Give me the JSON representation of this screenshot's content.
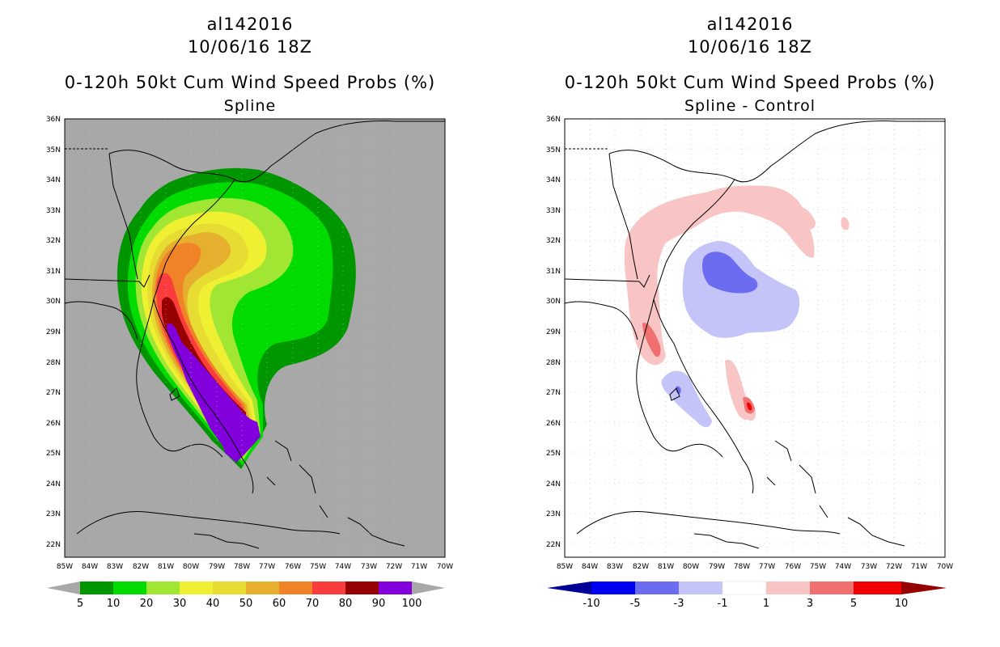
{
  "left_panel": {
    "storm_id": "al142016",
    "date": "10/06/16 18Z",
    "title": "0-120h 50kt Cum Wind Speed Probs (%)",
    "subtitle": "Spline",
    "background_color": "#a8a8a8",
    "colorbar": {
      "labels": [
        "5",
        "10",
        "20",
        "30",
        "40",
        "50",
        "60",
        "70",
        "80",
        "90",
        "100"
      ],
      "colors": [
        "#009600",
        "#00dc00",
        "#a0e632",
        "#f0f032",
        "#e6dc32",
        "#e6af2d",
        "#f08228",
        "#fa3c3c",
        "#960000",
        "#8200dc"
      ]
    }
  },
  "right_panel": {
    "storm_id": "al142016",
    "date": "10/06/16 18Z",
    "title": "0-120h 50kt Cum Wind Speed Probs (%)",
    "subtitle": "Spline - Control",
    "background_color": "#ffffff",
    "colorbar": {
      "labels": [
        "-10",
        "-5",
        "-3",
        "-1",
        "1",
        "3",
        "5",
        "10"
      ],
      "colors": [
        "#0000f0",
        "#6c6cf0",
        "#c4c4f8",
        "#ffffff",
        "#f8c4c4",
        "#f07070",
        "#f00000"
      ],
      "low_arrow_color": "#000096",
      "high_arrow_color": "#960000"
    }
  },
  "axes": {
    "lat_labels": [
      "36N",
      "35N",
      "34N",
      "33N",
      "32N",
      "31N",
      "30N",
      "29N",
      "28N",
      "27N",
      "26N",
      "25N",
      "24N",
      "23N",
      "22N"
    ],
    "lon_labels": [
      "85W",
      "84W",
      "83W",
      "82W",
      "81W",
      "80W",
      "79W",
      "78W",
      "77W",
      "76W",
      "75W",
      "74W",
      "73W",
      "72W",
      "71W",
      "70W"
    ]
  }
}
